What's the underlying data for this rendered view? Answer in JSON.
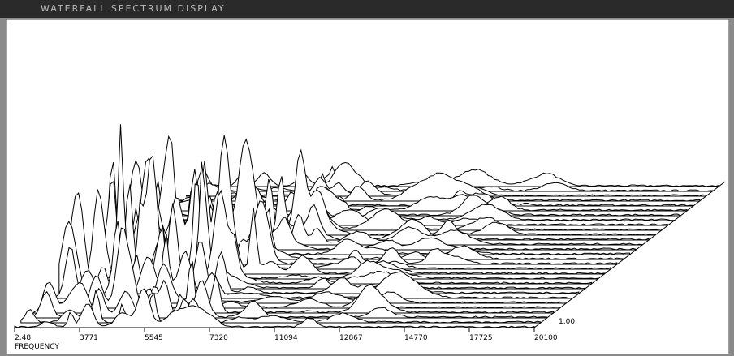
{
  "window": {
    "title": "WATERFALL SPECTRUM DISPLAY"
  },
  "plot": {
    "x_tick_labels": [
      "2.48",
      "3771",
      "5545",
      "7320",
      "11094",
      "12867",
      "14770",
      "17725",
      "20100"
    ],
    "x_axis_label": "FREQUENCY",
    "depth_label": "1.00"
  }
}
